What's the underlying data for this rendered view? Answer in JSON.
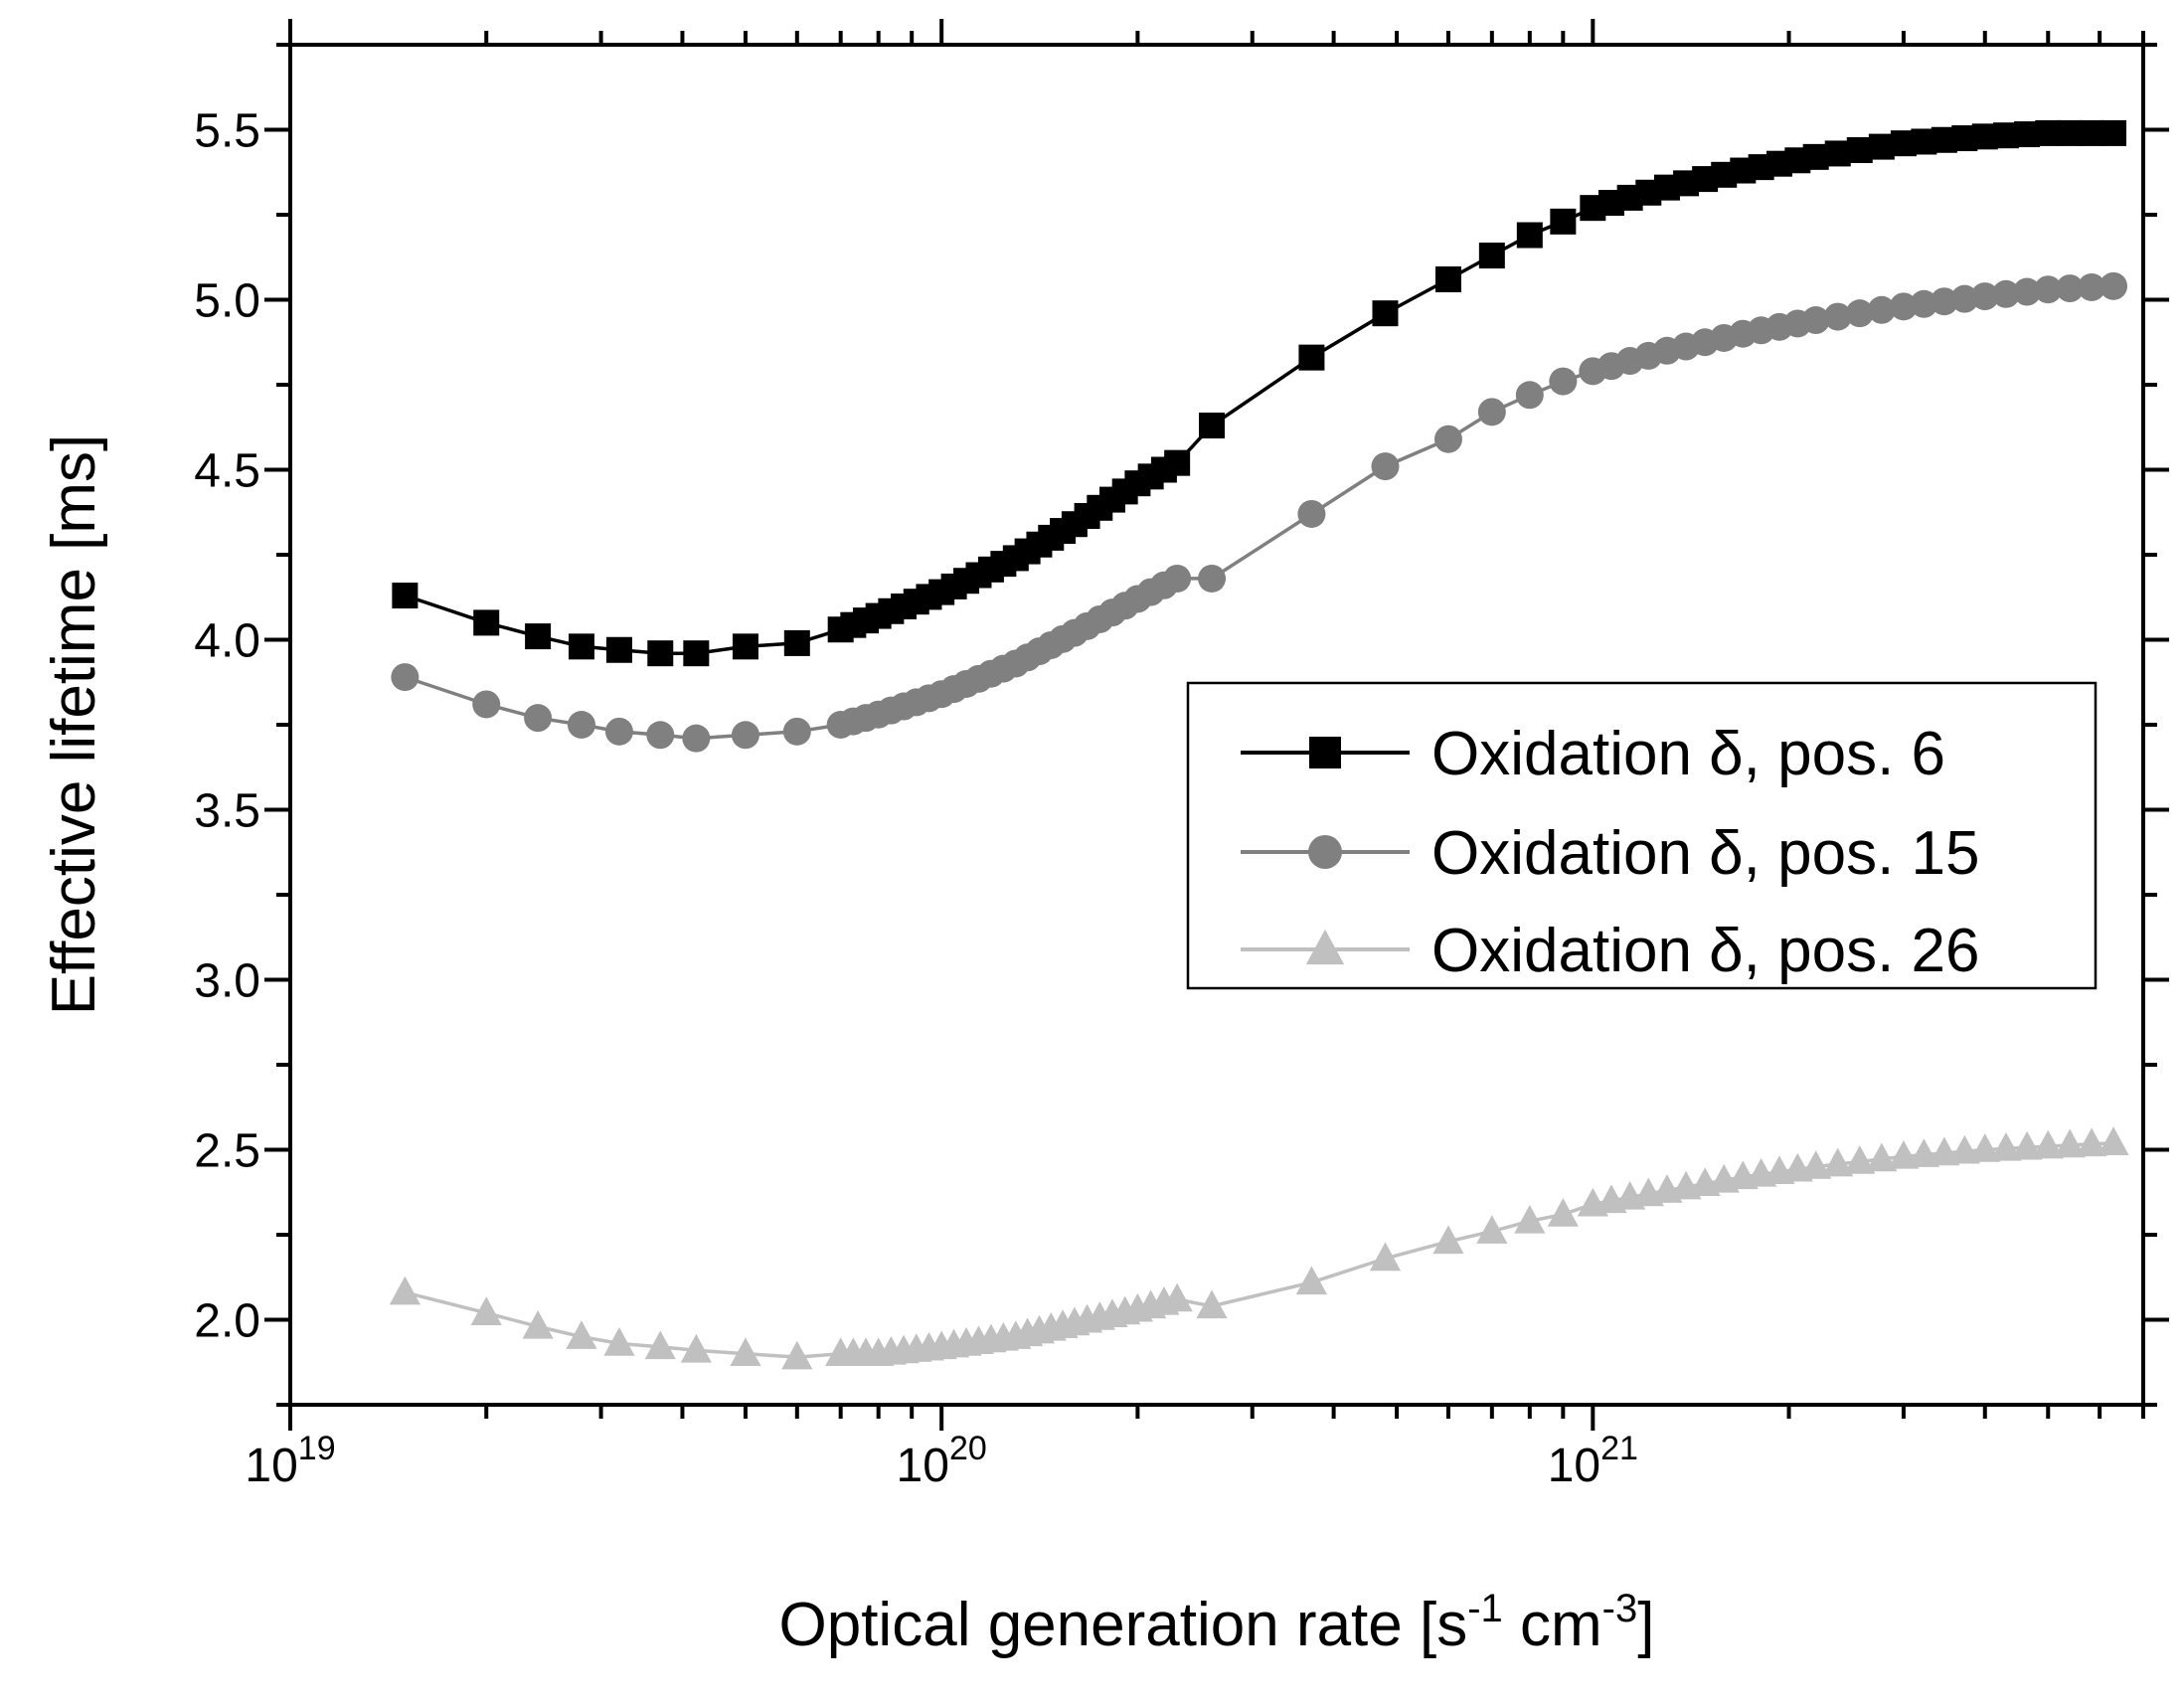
{
  "chart_data": {
    "type": "line",
    "title": "",
    "xlabel": {
      "text": "Optical generation rate [s",
      "sup1": "-1",
      "mid": " cm",
      "sup2": "-3",
      "end": "]"
    },
    "ylabel": "Effective lifetime [ms]",
    "xscale": "log",
    "xlim": [
      1e+19,
      7e+21
    ],
    "ylim": [
      1.75,
      5.75
    ],
    "xticks": [
      {
        "base": "10",
        "exp": "19",
        "value": 1e+19
      },
      {
        "base": "10",
        "exp": "20",
        "value": 1e+20
      },
      {
        "base": "10",
        "exp": "21",
        "value": 1e+21
      }
    ],
    "yticks": [
      "2.0",
      "2.5",
      "3.0",
      "3.5",
      "4.0",
      "4.5",
      "5.0",
      "5.5"
    ],
    "legend_position": "center-right",
    "series": [
      {
        "name": "Oxidation δ, pos. 6",
        "color": "#000000",
        "marker": "square",
        "anchors": [
          [
            1.5e+19,
            4.13
          ],
          [
            2e+19,
            4.05
          ],
          [
            2.4e+19,
            4.01
          ],
          [
            2.8e+19,
            3.98
          ],
          [
            3.2e+19,
            3.97
          ],
          [
            3.7e+19,
            3.96
          ],
          [
            4.2e+19,
            3.96
          ],
          [
            5e+19,
            3.98
          ],
          [
            6e+19,
            3.99
          ],
          [
            7e+19,
            4.03
          ],
          [
            8e+19,
            4.07
          ],
          [
            1e+20,
            4.14
          ],
          [
            1.3e+20,
            4.24
          ],
          [
            1.6e+20,
            4.34
          ],
          [
            2e+20,
            4.46
          ],
          [
            2.3e+20,
            4.52
          ],
          [
            2.6e+20,
            4.63
          ],
          [
            3.7e+20,
            4.83
          ],
          [
            4.8e+20,
            4.96
          ],
          [
            6e+20,
            5.06
          ],
          [
            7e+20,
            5.13
          ],
          [
            8e+20,
            5.19
          ],
          [
            9e+20,
            5.23
          ],
          [
            1e+21,
            5.27
          ],
          [
            1.3e+21,
            5.33
          ],
          [
            1.7e+21,
            5.38
          ],
          [
            2.2e+21,
            5.42
          ],
          [
            3e+21,
            5.46
          ],
          [
            4e+21,
            5.48
          ],
          [
            5e+21,
            5.49
          ],
          [
            6.3e+21,
            5.49
          ]
        ]
      },
      {
        "name": "Oxidation δ, pos. 15",
        "color": "#808080",
        "marker": "circle",
        "anchors": [
          [
            1.5e+19,
            3.89
          ],
          [
            2e+19,
            3.81
          ],
          [
            2.4e+19,
            3.77
          ],
          [
            2.8e+19,
            3.75
          ],
          [
            3.2e+19,
            3.73
          ],
          [
            3.7e+19,
            3.72
          ],
          [
            4.2e+19,
            3.71
          ],
          [
            5e+19,
            3.72
          ],
          [
            6e+19,
            3.73
          ],
          [
            7e+19,
            3.75
          ],
          [
            8e+19,
            3.78
          ],
          [
            1e+20,
            3.84
          ],
          [
            1.3e+20,
            3.93
          ],
          [
            1.6e+20,
            4.02
          ],
          [
            2e+20,
            4.12
          ],
          [
            2.3e+20,
            4.18
          ],
          [
            2.6e+20,
            4.18
          ],
          [
            3.7e+20,
            4.37
          ],
          [
            4.8e+20,
            4.51
          ],
          [
            6e+20,
            4.59
          ],
          [
            7e+20,
            4.67
          ],
          [
            8e+20,
            4.72
          ],
          [
            9e+20,
            4.76
          ],
          [
            1e+21,
            4.79
          ],
          [
            1.3e+21,
            4.85
          ],
          [
            1.7e+21,
            4.9
          ],
          [
            2.2e+21,
            4.94
          ],
          [
            3e+21,
            4.98
          ],
          [
            4e+21,
            5.01
          ],
          [
            5e+21,
            5.03
          ],
          [
            6.3e+21,
            5.04
          ]
        ]
      },
      {
        "name": "Oxidation δ, pos. 26",
        "color": "#c0c0c0",
        "marker": "triangle",
        "anchors": [
          [
            1.5e+19,
            2.08
          ],
          [
            2e+19,
            2.02
          ],
          [
            2.4e+19,
            1.98
          ],
          [
            2.8e+19,
            1.95
          ],
          [
            3.2e+19,
            1.93
          ],
          [
            3.7e+19,
            1.92
          ],
          [
            4.2e+19,
            1.91
          ],
          [
            5e+19,
            1.9
          ],
          [
            6e+19,
            1.89
          ],
          [
            7e+19,
            1.9
          ],
          [
            8e+19,
            1.9
          ],
          [
            1e+20,
            1.92
          ],
          [
            1.3e+20,
            1.95
          ],
          [
            1.6e+20,
            1.99
          ],
          [
            2e+20,
            2.03
          ],
          [
            2.3e+20,
            2.06
          ],
          [
            2.6e+20,
            2.04
          ],
          [
            3.7e+20,
            2.11
          ],
          [
            4.8e+20,
            2.18
          ],
          [
            6e+20,
            2.23
          ],
          [
            7e+20,
            2.26
          ],
          [
            8e+20,
            2.29
          ],
          [
            9e+20,
            2.31
          ],
          [
            1e+21,
            2.34
          ],
          [
            1.3e+21,
            2.38
          ],
          [
            1.7e+21,
            2.42
          ],
          [
            2.2e+21,
            2.45
          ],
          [
            3e+21,
            2.48
          ],
          [
            4e+21,
            2.5
          ],
          [
            5e+21,
            2.51
          ],
          [
            6.3e+21,
            2.52
          ]
        ]
      }
    ]
  }
}
